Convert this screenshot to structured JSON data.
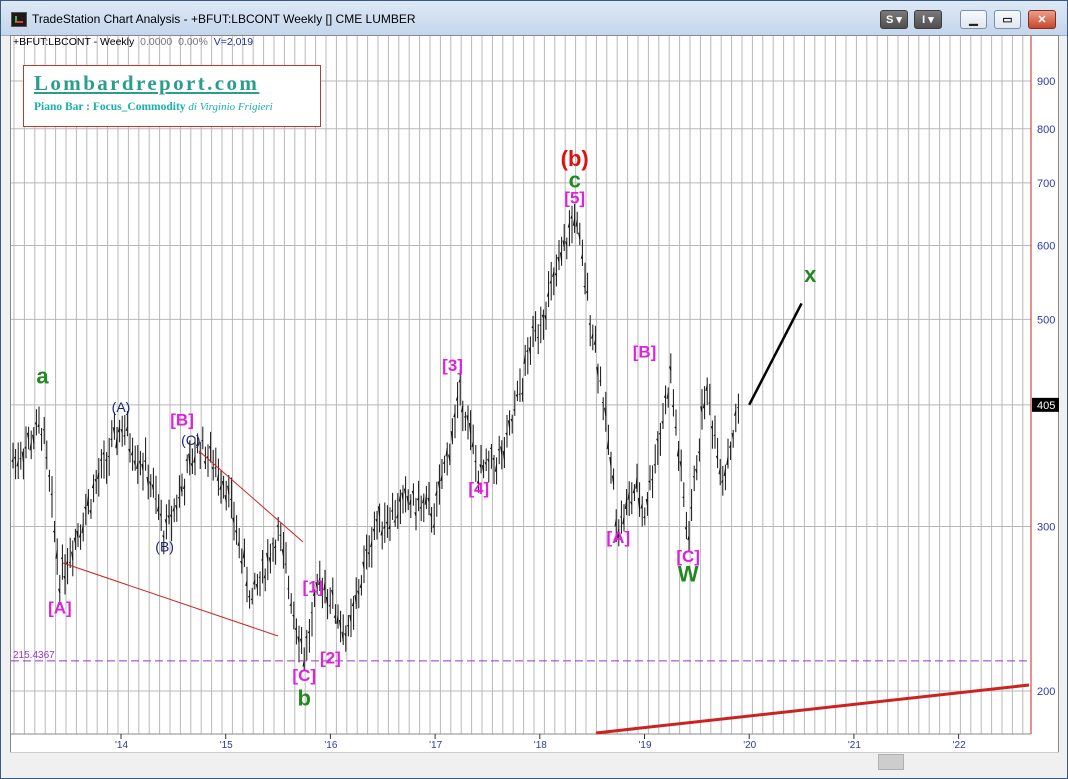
{
  "window": {
    "title": "TradeStation Chart Analysis - +BFUT:LBCONT Weekly [] CME LUMBER",
    "buttons": {
      "s": "S",
      "i": "I"
    }
  },
  "header": {
    "symbol": "+BFUT:LBCONT - Weekly",
    "change": "0.0000",
    "pct": "0.00%",
    "volume": "V=2,019"
  },
  "logo": {
    "title": "Lombardreport.com",
    "subtitle": "Piano Bar : Focus_Commodity",
    "author": "di Virginio Frigieri"
  },
  "colors": {
    "magenta": "#dd22dd",
    "green": "#228822",
    "navy": "#1a237e",
    "red": "#dd1111",
    "trendline": "#cc2222",
    "grid": "#b8b8b8",
    "axis": "#2a3aa8",
    "hline": "#9933cc"
  },
  "chart_data": {
    "type": "ohlc",
    "y_scale": "log",
    "ylim": [
      185,
      1000
    ],
    "x_tick_labels": [
      "'14",
      "'15",
      "'16",
      "'17",
      "'18",
      "'19",
      "'20",
      "'21",
      "'22"
    ],
    "y_tick_labels": [
      "900",
      "800",
      "700",
      "600",
      "500",
      "300",
      "200"
    ],
    "last_price": "405",
    "hline_label": "215.4367",
    "price_path": [
      [
        "2013-01",
        355
      ],
      [
        "2013-04",
        385
      ],
      [
        "2013-06",
        265
      ],
      [
        "2013-10",
        330
      ],
      [
        "2014-01",
        385
      ],
      [
        "2014-04",
        345
      ],
      [
        "2014-06",
        295
      ],
      [
        "2014-10",
        370
      ],
      [
        "2015-01",
        335
      ],
      [
        "2015-04",
        250
      ],
      [
        "2015-07",
        295
      ],
      [
        "2015-10",
        218
      ],
      [
        "2015-12",
        265
      ],
      [
        "2016-03",
        228
      ],
      [
        "2016-06",
        300
      ],
      [
        "2016-10",
        320
      ],
      [
        "2017-01",
        310
      ],
      [
        "2017-04",
        420
      ],
      [
        "2017-06",
        340
      ],
      [
        "2017-09",
        360
      ],
      [
        "2017-12",
        470
      ],
      [
        "2018-03",
        560
      ],
      [
        "2018-05",
        650
      ],
      [
        "2018-08",
        430
      ],
      [
        "2018-10",
        300
      ],
      [
        "2018-12",
        330
      ],
      [
        "2019-01",
        310
      ],
      [
        "2019-04",
        435
      ],
      [
        "2019-06",
        290
      ],
      [
        "2019-08",
        425
      ],
      [
        "2019-10",
        340
      ],
      [
        "2019-12",
        405
      ]
    ],
    "projection": [
      [
        "2020-01",
        405
      ],
      [
        "2020-07",
        520
      ]
    ],
    "wave_labels": [
      {
        "text": "a",
        "date": "2013-04",
        "price": 427,
        "color": "green"
      },
      {
        "text": "[A]",
        "date": "2013-06",
        "price": 242,
        "color": "magenta"
      },
      {
        "text": "(A)",
        "date": "2014-01",
        "price": 398,
        "color": "navy"
      },
      {
        "text": "(B)",
        "date": "2014-06",
        "price": 282,
        "color": "navy"
      },
      {
        "text": "[B]",
        "date": "2014-08",
        "price": 385,
        "color": "magenta"
      },
      {
        "text": "(C)",
        "date": "2014-09",
        "price": 367,
        "color": "navy"
      },
      {
        "text": "[1]",
        "date": "2015-11",
        "price": 255,
        "color": "magenta"
      },
      {
        "text": "[2]",
        "date": "2016-01",
        "price": 214,
        "color": "magenta"
      },
      {
        "text": "[C]",
        "date": "2015-10",
        "price": 205,
        "color": "magenta"
      },
      {
        "text": "b",
        "date": "2015-10",
        "price": 193,
        "color": "green"
      },
      {
        "text": "[3]",
        "date": "2017-03",
        "price": 440,
        "color": "magenta"
      },
      {
        "text": "[4]",
        "date": "2017-06",
        "price": 325,
        "color": "magenta"
      },
      {
        "text": "(b)",
        "date": "2018-05",
        "price": 730,
        "color": "red"
      },
      {
        "text": "c",
        "date": "2018-05",
        "price": 692,
        "color": "green"
      },
      {
        "text": "[5]",
        "date": "2018-05",
        "price": 665,
        "color": "magenta"
      },
      {
        "text": "[A]",
        "date": "2018-10",
        "price": 288,
        "color": "magenta"
      },
      {
        "text": "[B]",
        "date": "2019-01",
        "price": 455,
        "color": "magenta"
      },
      {
        "text": "[C]",
        "date": "2019-06",
        "price": 275,
        "color": "magenta"
      },
      {
        "text": "W",
        "date": "2019-06",
        "price": 262,
        "color": "green"
      },
      {
        "text": "x",
        "date": "2020-08",
        "price": 548,
        "color": "green"
      }
    ]
  }
}
